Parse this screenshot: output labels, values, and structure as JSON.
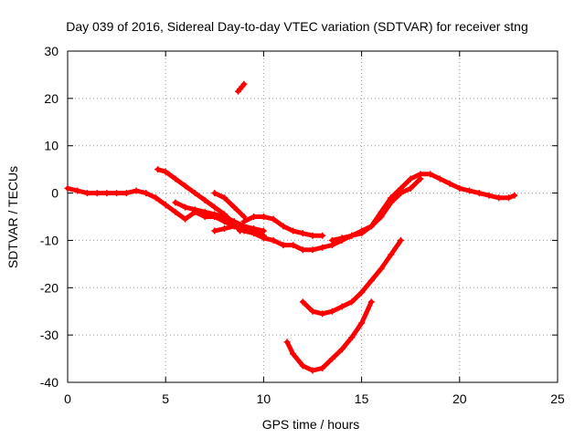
{
  "chart_data": {
    "type": "scatter",
    "title": "Day 039 of 2016, Sidereal Day-to-day VTEC variation (SDTVAR) for receiver stng",
    "xlabel": "GPS time / hours",
    "ylabel": "SDTVAR / TECUs",
    "xlim": [
      0,
      25
    ],
    "ylim": [
      -40,
      30
    ],
    "xticks": [
      0,
      5,
      10,
      15,
      20,
      25
    ],
    "yticks": [
      -40,
      -30,
      -20,
      -10,
      0,
      10,
      20,
      30
    ],
    "grid": true,
    "marker": "plus",
    "color": "#ff0000",
    "series": [
      {
        "name": "track-1",
        "x": [
          0,
          0.5,
          1,
          1.5,
          2,
          2.5,
          3,
          3.5,
          4,
          4.5,
          5,
          5.5,
          6,
          6.5,
          7,
          7.5,
          8,
          8.5,
          9,
          9.5,
          10,
          10.5,
          11,
          11.5,
          12,
          12.5,
          13,
          13.5,
          14,
          14.5,
          15,
          15.5,
          16,
          16.5,
          17,
          17.5,
          18,
          18.5,
          19,
          19.5,
          20,
          20.5,
          21,
          21.5,
          22,
          22.5,
          22.8
        ],
        "y": [
          1,
          0.5,
          0,
          0,
          0,
          0,
          0,
          0.5,
          0,
          -1,
          -2.5,
          -4,
          -5.5,
          -4,
          -5,
          -5,
          -6,
          -7,
          -8,
          -8.5,
          -9.5,
          -10,
          -11,
          -11,
          -12,
          -12,
          -11.5,
          -11,
          -10,
          -9,
          -8,
          -7,
          -4,
          -1,
          1,
          3,
          4,
          4,
          3,
          2,
          1,
          0.5,
          0,
          -0.5,
          -1,
          -1,
          -0.5
        ]
      },
      {
        "name": "track-2",
        "x": [
          4.6,
          5,
          5.5,
          6,
          6.5,
          7,
          7.5,
          8,
          8.5,
          8.8
        ],
        "y": [
          5,
          4.5,
          3,
          1.5,
          0,
          -1.5,
          -3,
          -4.5,
          -6.5,
          -8
        ]
      },
      {
        "name": "track-3",
        "x": [
          5.5,
          6,
          6.5,
          7,
          7.5,
          8,
          8.5,
          9,
          9.5,
          10
        ],
        "y": [
          -2,
          -3,
          -3.5,
          -4,
          -4.5,
          -5,
          -6,
          -7,
          -7.5,
          -8
        ]
      },
      {
        "name": "track-4",
        "x": [
          7.5,
          8,
          8.5,
          9,
          9.5,
          10
        ],
        "y": [
          -8,
          -7.5,
          -7,
          -7,
          -8,
          -9
        ]
      },
      {
        "name": "track-5",
        "x": [
          7.5,
          8,
          8.5,
          9
        ],
        "y": [
          0,
          -1,
          -3,
          -5
        ]
      },
      {
        "name": "track-6",
        "x": [
          9,
          9.5,
          10,
          10.5,
          11,
          11.5,
          12,
          12.5,
          13
        ],
        "y": [
          -6,
          -5,
          -5,
          -5.5,
          -7,
          -8,
          -8.5,
          -9,
          -9
        ]
      },
      {
        "name": "track-7",
        "x": [
          13.5,
          14,
          14.5,
          15,
          15.5,
          16,
          16.5,
          17,
          17.5,
          18
        ],
        "y": [
          -10,
          -9.5,
          -9,
          -8.5,
          -7,
          -5,
          -2,
          0,
          1,
          3
        ]
      },
      {
        "name": "track-8",
        "x": [
          12,
          12.5,
          13,
          13.5,
          14,
          14.5,
          15,
          15.5,
          16,
          16.5,
          17
        ],
        "y": [
          -23,
          -25,
          -25.5,
          -25,
          -24,
          -23,
          -21,
          -18.5,
          -16,
          -13,
          -10
        ]
      },
      {
        "name": "track-9",
        "x": [
          11.2,
          11.5,
          12,
          12.5,
          13,
          13.5,
          14,
          14.5,
          15,
          15.5
        ],
        "y": [
          -31.5,
          -34,
          -36.5,
          -37.5,
          -37,
          -35,
          -33,
          -30.5,
          -27.5,
          -23
        ]
      },
      {
        "name": "track-10",
        "x": [
          8.7,
          8.8,
          8.9,
          9
        ],
        "y": [
          21.5,
          22,
          22.5,
          23
        ]
      }
    ]
  }
}
